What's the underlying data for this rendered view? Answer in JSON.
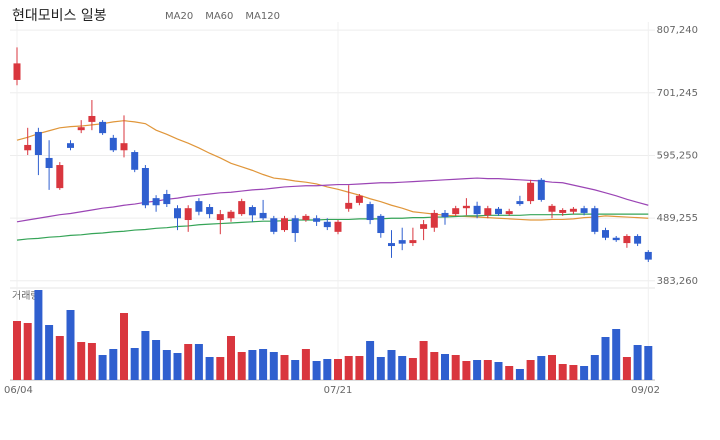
{
  "chart_data": {
    "type": "candlestick",
    "title": "현대모비스 일봉",
    "categories": [
      "06/04",
      null,
      null,
      null,
      null,
      null,
      null,
      null,
      null,
      null,
      null,
      null,
      null,
      null,
      null,
      null,
      null,
      null,
      null,
      null,
      null,
      null,
      null,
      null,
      null,
      null,
      null,
      null,
      null,
      null,
      "07/21",
      null,
      null,
      null,
      null,
      null,
      null,
      null,
      null,
      null,
      null,
      null,
      null,
      null,
      null,
      null,
      null,
      null,
      null,
      null,
      null,
      null,
      null,
      null,
      null,
      null,
      null,
      null,
      null,
      "09/02"
    ],
    "open": [
      723000,
      604000,
      635000,
      591000,
      540000,
      616000,
      638000,
      652000,
      652000,
      625000,
      604000,
      601000,
      574000,
      523000,
      530000,
      506000,
      486000,
      518000,
      508000,
      486000,
      489000,
      496000,
      508000,
      498000,
      489000,
      469000,
      489000,
      486000,
      489000,
      483000,
      466000,
      505000,
      515000,
      513000,
      493000,
      447000,
      452000,
      447000,
      471000,
      473000,
      498000,
      496000,
      506000,
      510000,
      494000,
      505000,
      496000,
      518000,
      518000,
      554000,
      500000,
      498000,
      500000,
      506000,
      506000,
      469000,
      456000,
      447000,
      459000,
      432000
    ],
    "high": [
      778000,
      642000,
      642000,
      621000,
      584000,
      621000,
      655000,
      689000,
      655000,
      630000,
      663000,
      604000,
      579000,
      528000,
      537000,
      511000,
      511000,
      523000,
      513000,
      503000,
      503000,
      522000,
      511000,
      520000,
      493000,
      493000,
      494000,
      496000,
      494000,
      489000,
      486000,
      545000,
      530000,
      517000,
      496000,
      469000,
      473000,
      473000,
      486000,
      503000,
      503000,
      510000,
      523000,
      517000,
      510000,
      508000,
      505000,
      527000,
      554000,
      557000,
      513000,
      506000,
      508000,
      510000,
      510000,
      473000,
      459000,
      462000,
      462000,
      435000
    ],
    "low": [
      714000,
      596000,
      562000,
      537000,
      537000,
      604000,
      633000,
      638000,
      630000,
      601000,
      592000,
      567000,
      506000,
      500000,
      508000,
      469000,
      466000,
      494000,
      489000,
      462000,
      483000,
      493000,
      483000,
      486000,
      462000,
      466000,
      449000,
      483000,
      476000,
      469000,
      462000,
      500000,
      511000,
      479000,
      456000,
      422000,
      435000,
      442000,
      452000,
      466000,
      478000,
      493000,
      494000,
      489000,
      489000,
      493000,
      493000,
      510000,
      513000,
      517000,
      489000,
      493000,
      496000,
      494000,
      462000,
      452000,
      449000,
      439000,
      442000,
      415000
    ],
    "close": [
      751000,
      613000,
      596000,
      574000,
      579000,
      608000,
      643000,
      662000,
      633000,
      604000,
      616000,
      571000,
      511000,
      511000,
      513000,
      489000,
      506000,
      500000,
      496000,
      496000,
      500000,
      518000,
      494000,
      489000,
      466000,
      489000,
      464000,
      493000,
      483000,
      474000,
      483000,
      515000,
      527000,
      486000,
      464000,
      442000,
      446000,
      452000,
      479000,
      498000,
      491000,
      506000,
      510000,
      496000,
      506000,
      496000,
      501000,
      513000,
      549000,
      520000,
      510000,
      503000,
      505000,
      498000,
      466000,
      456000,
      452000,
      459000,
      446000,
      419000
    ],
    "up_color": "#d9363e",
    "down_color": "#2f5fcf",
    "series": [
      {
        "name": "MA20",
        "color": "#e0963a",
        "values": [
          621000,
          626000,
          632000,
          637000,
          642000,
          644000,
          645000,
          647000,
          649000,
          652000,
          654000,
          652000,
          649000,
          638000,
          631000,
          623000,
          616000,
          608000,
          599000,
          591000,
          582000,
          576000,
          570000,
          563000,
          557000,
          555000,
          552000,
          550000,
          547000,
          542000,
          538000,
          533000,
          528000,
          522000,
          517000,
          511000,
          506000,
          500000,
          498000,
          496000,
          494000,
          493000,
          492000,
          491000,
          490000,
          489000,
          488000,
          487000,
          486000,
          486000,
          487000,
          487000,
          488000,
          490000,
          491000,
          493000,
          492000,
          491000,
          490000,
          489000
        ]
      },
      {
        "name": "MA60",
        "color": "#9b45b5",
        "values": [
          483000,
          486000,
          489000,
          492000,
          495000,
          497000,
          500000,
          503000,
          506000,
          508000,
          511000,
          513000,
          516000,
          518000,
          521000,
          523000,
          526000,
          528000,
          530000,
          532000,
          533000,
          535000,
          537000,
          538000,
          540000,
          542000,
          543000,
          544000,
          544000,
          545000,
          546000,
          546000,
          547000,
          548000,
          549000,
          549000,
          550000,
          551000,
          552000,
          553000,
          554000,
          555000,
          556000,
          557000,
          556000,
          556000,
          555000,
          554000,
          553000,
          552000,
          550000,
          549000,
          545000,
          541000,
          537000,
          532000,
          527000,
          521000,
          516000,
          511000
        ]
      },
      {
        "name": "MA120",
        "color": "#35a457",
        "values": [
          452000,
          454000,
          455000,
          457000,
          458000,
          460000,
          461000,
          463000,
          464000,
          466000,
          467000,
          469000,
          470000,
          472000,
          473000,
          475000,
          476000,
          478000,
          479000,
          480000,
          481000,
          482000,
          483000,
          484000,
          484000,
          485000,
          486000,
          486000,
          486000,
          487000,
          487000,
          487000,
          488000,
          488000,
          488000,
          489000,
          489000,
          490000,
          490000,
          491000,
          491000,
          492000,
          493000,
          493000,
          494000,
          494000,
          494000,
          494000,
          495000,
          495000,
          495000,
          495000,
          496000,
          496000,
          496000,
          496000,
          496000,
          496000,
          496000,
          496000
        ]
      }
    ],
    "volume": {
      "label": "거래량",
      "ylim": [
        0,
        100
      ],
      "values": [
        59,
        57,
        90,
        55,
        44,
        70,
        38,
        37,
        25,
        31,
        67,
        32,
        49,
        40,
        30,
        27,
        36,
        36,
        23,
        23,
        44,
        28,
        30,
        31,
        28,
        25,
        20,
        31,
        19,
        21,
        21,
        24,
        24,
        39,
        23,
        30,
        24,
        22,
        39,
        28,
        26,
        25,
        19,
        20,
        20,
        18,
        14,
        11,
        20,
        24,
        25,
        16,
        15,
        14,
        25,
        43,
        51,
        23,
        35,
        34
      ]
    },
    "ylim": [
      371000,
      821000
    ],
    "yticks": [
      {
        "value": 383260,
        "label": "383,260"
      },
      {
        "value": 489255,
        "label": "489,255"
      },
      {
        "value": 595250,
        "label": "595,250"
      },
      {
        "value": 701245,
        "label": "701,245"
      },
      {
        "value": 807240,
        "label": "807,240"
      }
    ],
    "grid": true
  }
}
